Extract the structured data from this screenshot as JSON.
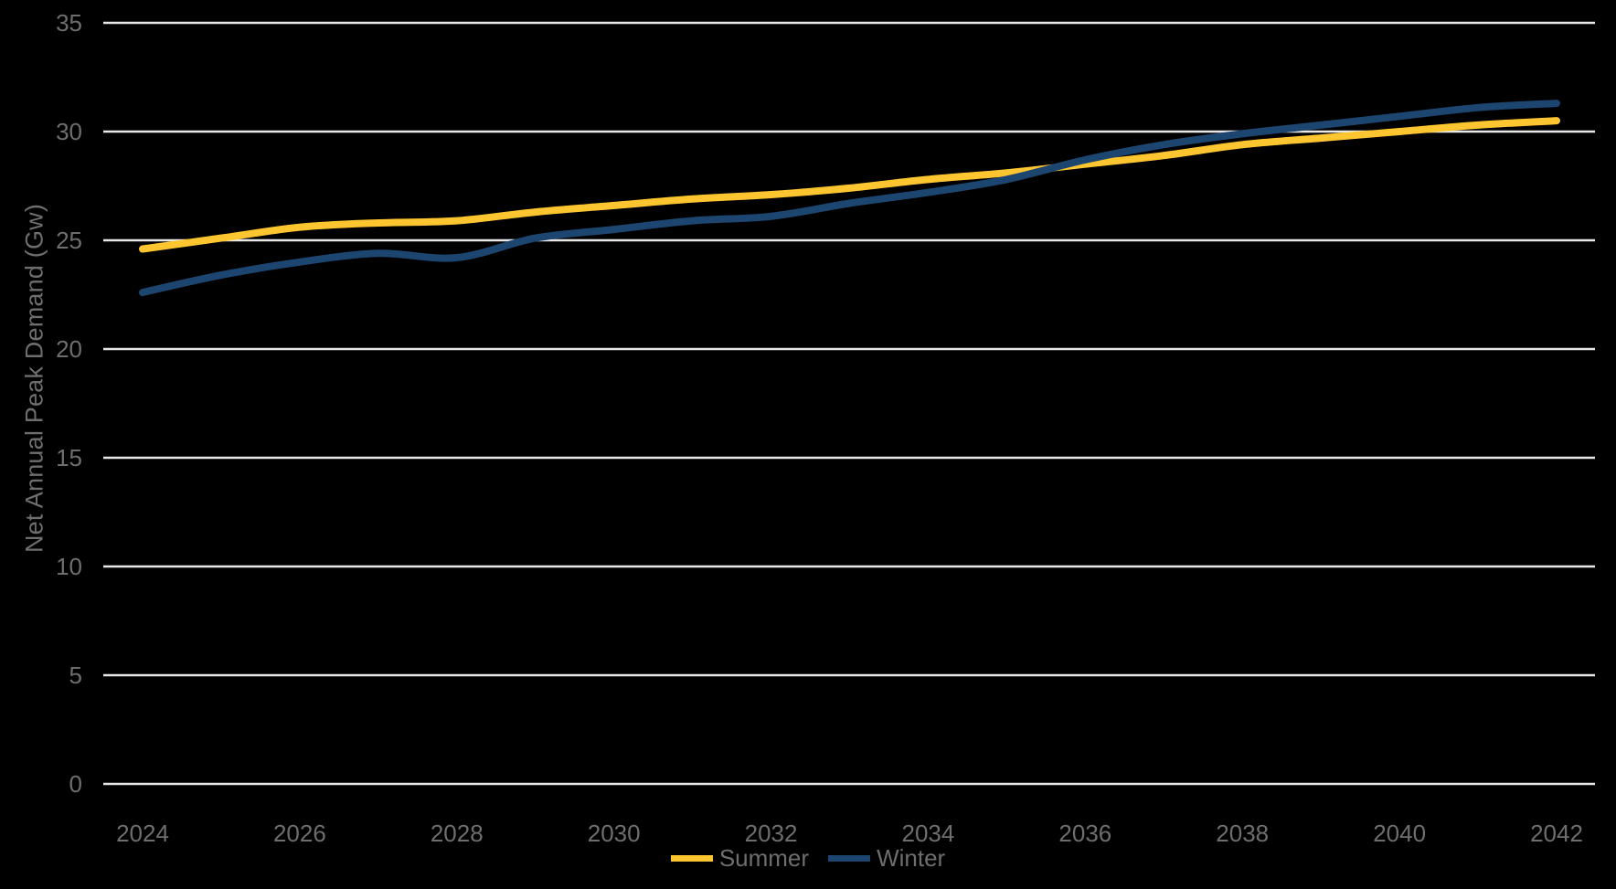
{
  "chart_data": {
    "type": "line",
    "title": "",
    "xlabel": "",
    "ylabel": "Net Annual Peak Demand (Gw)",
    "x": [
      2024,
      2025,
      2026,
      2027,
      2028,
      2029,
      2030,
      2031,
      2032,
      2033,
      2034,
      2035,
      2036,
      2037,
      2038,
      2039,
      2040,
      2041,
      2042
    ],
    "series": [
      {
        "name": "Summer",
        "color": "#FDC52F",
        "values": [
          24.6,
          25.1,
          25.6,
          25.8,
          25.9,
          26.3,
          26.6,
          26.9,
          27.1,
          27.4,
          27.8,
          28.1,
          28.5,
          28.9,
          29.4,
          29.7,
          30.0,
          30.3,
          30.5
        ]
      },
      {
        "name": "Winter",
        "color": "#1C456F",
        "values": [
          22.6,
          23.4,
          24.0,
          24.4,
          24.2,
          25.1,
          25.5,
          25.9,
          26.1,
          26.7,
          27.2,
          27.8,
          28.7,
          29.4,
          29.9,
          30.3,
          30.7,
          31.1,
          31.3
        ]
      }
    ],
    "ylim": [
      0,
      35
    ],
    "y_ticks": [
      0,
      5,
      10,
      15,
      20,
      25,
      30,
      35
    ],
    "x_ticks": [
      2024,
      2026,
      2028,
      2030,
      2032,
      2034,
      2036,
      2038,
      2040,
      2042
    ],
    "grid": "horizontal",
    "legend_position": "bottom-center",
    "colors": {
      "background": "#000000",
      "gridline": "#E8E8E8",
      "axis_text": "#6E6E6E"
    }
  }
}
